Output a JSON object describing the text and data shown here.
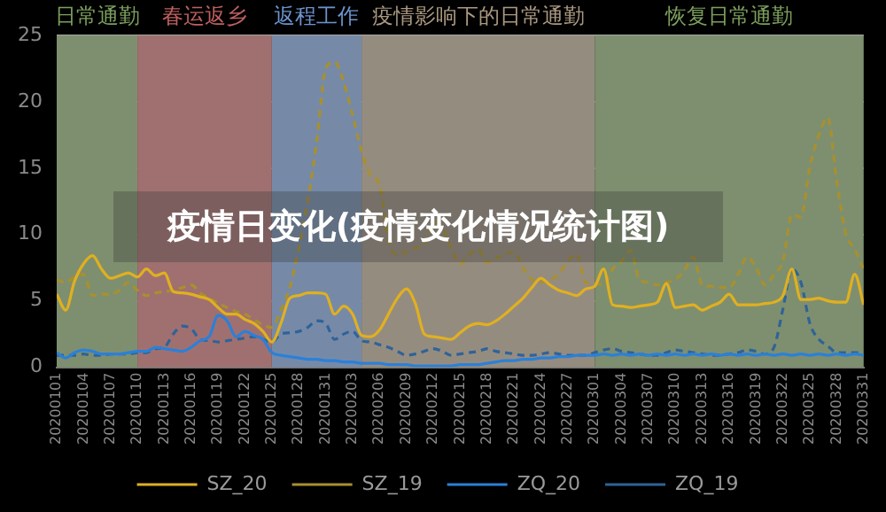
{
  "chart_data": {
    "type": "line",
    "title": "疫情日变化(疫情变化情况统计图)",
    "x": [
      "2020-01-01",
      "2020-01-02",
      "2020-01-03",
      "2020-01-04",
      "2020-01-05",
      "2020-01-06",
      "2020-01-07",
      "2020-01-08",
      "2020-01-09",
      "2020-01-10",
      "2020-01-11",
      "2020-01-12",
      "2020-01-13",
      "2020-01-14",
      "2020-01-15",
      "2020-01-16",
      "2020-01-17",
      "2020-01-18",
      "2020-01-19",
      "2020-01-20",
      "2020-01-21",
      "2020-01-22",
      "2020-01-23",
      "2020-01-24",
      "2020-01-25",
      "2020-01-26",
      "2020-01-27",
      "2020-01-28",
      "2020-01-29",
      "2020-01-30",
      "2020-01-31",
      "2020-02-01",
      "2020-02-02",
      "2020-02-03",
      "2020-02-04",
      "2020-02-05",
      "2020-02-06",
      "2020-02-07",
      "2020-02-08",
      "2020-02-09",
      "2020-02-10",
      "2020-02-11",
      "2020-02-12",
      "2020-02-13",
      "2020-02-14",
      "2020-02-15",
      "2020-02-16",
      "2020-02-17",
      "2020-02-18",
      "2020-02-19",
      "2020-02-20",
      "2020-02-21",
      "2020-02-22",
      "2020-02-23",
      "2020-02-24",
      "2020-02-25",
      "2020-02-26",
      "2020-02-27",
      "2020-02-28",
      "2020-02-29",
      "2020-03-01",
      "2020-03-02",
      "2020-03-03",
      "2020-03-04",
      "2020-03-05",
      "2020-03-06",
      "2020-03-07",
      "2020-03-08",
      "2020-03-09",
      "2020-03-10",
      "2020-03-11",
      "2020-03-12",
      "2020-03-13",
      "2020-03-14",
      "2020-03-15",
      "2020-03-16",
      "2020-03-17",
      "2020-03-18",
      "2020-03-19",
      "2020-03-20",
      "2020-03-21",
      "2020-03-22",
      "2020-03-23",
      "2020-03-24",
      "2020-03-25",
      "2020-03-26",
      "2020-03-27",
      "2020-03-28",
      "2020-03-29",
      "2020-03-30",
      "2020-03-31"
    ],
    "series": [
      {
        "name": "SZ_20",
        "color": "#e0b020",
        "line_style": "solid",
        "values": [
          5.5,
          4.3,
          6.5,
          7.8,
          8.4,
          7.4,
          6.7,
          6.9,
          7.1,
          6.8,
          7.4,
          6.9,
          7.1,
          5.7,
          5.6,
          5.5,
          5.3,
          5.1,
          4.5,
          4.0,
          4.0,
          3.6,
          3.3,
          2.7,
          1.9,
          3.3,
          5.2,
          5.4,
          5.6,
          5.6,
          5.5,
          4.0,
          4.6,
          4.0,
          2.4,
          2.3,
          2.8,
          4.0,
          5.2,
          5.9,
          4.8,
          2.5,
          2.3,
          2.2,
          2.1,
          2.6,
          3.1,
          3.3,
          3.2,
          3.5,
          4.0,
          4.6,
          5.2,
          6.0,
          6.7,
          6.2,
          5.8,
          5.6,
          5.4,
          5.9,
          6.1,
          7.4,
          4.7,
          4.6,
          4.5,
          4.6,
          4.7,
          4.9,
          6.3,
          4.5,
          4.6,
          4.7,
          4.3,
          4.6,
          4.9,
          5.5,
          4.7,
          4.7,
          4.7,
          4.8,
          4.9,
          5.4,
          7.4,
          5.1,
          5.1,
          5.2,
          5.0,
          4.9,
          4.9,
          7.0,
          4.7
        ]
      },
      {
        "name": "SZ_19",
        "color": "#a8902e",
        "line_style": "dashed",
        "values": [
          6.6,
          6.4,
          6.8,
          7.0,
          5.4,
          5.5,
          5.5,
          5.8,
          6.4,
          5.8,
          5.4,
          5.6,
          5.7,
          5.8,
          6.0,
          6.2,
          5.6,
          5.2,
          4.8,
          4.5,
          4.2,
          4.0,
          3.6,
          3.2,
          3.0,
          4.3,
          6.0,
          9.0,
          12.5,
          17.0,
          22.5,
          23.0,
          21.5,
          19.0,
          16.3,
          14.5,
          13.8,
          9.5,
          8.5,
          8.7,
          9.0,
          9.3,
          10.9,
          10.5,
          9.0,
          7.8,
          8.5,
          8.9,
          7.9,
          8.2,
          8.5,
          8.7,
          7.5,
          6.6,
          6.4,
          6.6,
          7.0,
          8.0,
          8.5,
          6.4,
          6.3,
          6.2,
          7.4,
          8.0,
          8.8,
          6.6,
          6.4,
          6.2,
          6.4,
          6.6,
          7.3,
          8.3,
          6.2,
          6.1,
          6.0,
          6.0,
          7.0,
          8.3,
          7.5,
          6.2,
          7.0,
          8.0,
          11.5,
          11.3,
          15.1,
          17.5,
          18.8,
          14.0,
          10.1,
          8.9,
          7.4
        ]
      },
      {
        "name": "ZQ_20",
        "color": "#2b80d8",
        "line_style": "solid",
        "values": [
          1.1,
          0.7,
          1.1,
          1.3,
          1.2,
          1.0,
          1.0,
          1.0,
          1.1,
          1.2,
          1.2,
          1.5,
          1.4,
          1.3,
          1.2,
          1.5,
          2.0,
          2.3,
          3.9,
          3.5,
          2.3,
          2.7,
          2.4,
          2.1,
          1.1,
          0.9,
          0.8,
          0.7,
          0.6,
          0.6,
          0.5,
          0.5,
          0.4,
          0.4,
          0.3,
          0.3,
          0.3,
          0.2,
          0.2,
          0.2,
          0.1,
          0.1,
          0.1,
          0.1,
          0.1,
          0.2,
          0.2,
          0.2,
          0.3,
          0.4,
          0.5,
          0.5,
          0.6,
          0.6,
          0.7,
          0.7,
          0.8,
          0.8,
          0.9,
          0.9,
          0.9,
          1.0,
          0.9,
          1.0,
          0.9,
          1.0,
          0.9,
          1.0,
          0.9,
          1.0,
          0.9,
          1.0,
          0.9,
          1.0,
          0.9,
          1.0,
          0.9,
          1.0,
          0.9,
          1.0,
          0.9,
          1.0,
          0.9,
          1.0,
          0.9,
          1.0,
          0.9,
          1.0,
          0.9,
          1.0,
          0.9
        ]
      },
      {
        "name": "ZQ_19",
        "color": "#2f6398",
        "line_style": "dashed",
        "values": [
          0.9,
          0.9,
          0.9,
          1.0,
          0.9,
          0.9,
          1.0,
          1.0,
          1.0,
          1.1,
          1.1,
          1.4,
          1.5,
          2.5,
          3.1,
          2.9,
          2.1,
          2.0,
          1.9,
          2.0,
          2.1,
          2.2,
          2.3,
          2.1,
          1.9,
          2.5,
          2.6,
          2.7,
          3.0,
          3.5,
          3.3,
          2.1,
          2.5,
          2.7,
          2.0,
          1.9,
          1.7,
          1.5,
          1.2,
          0.9,
          1.0,
          1.2,
          1.4,
          1.2,
          0.9,
          1.0,
          1.1,
          1.2,
          1.4,
          1.2,
          1.1,
          1.0,
          0.9,
          0.9,
          1.0,
          1.1,
          1.0,
          0.9,
          0.9,
          0.9,
          1.1,
          1.3,
          1.4,
          1.2,
          1.1,
          1.0,
          0.9,
          0.9,
          1.1,
          1.3,
          1.2,
          1.1,
          1.0,
          0.9,
          0.9,
          1.0,
          1.1,
          1.3,
          1.2,
          1.0,
          1.5,
          4.4,
          7.4,
          6.4,
          3.3,
          2.1,
          1.6,
          1.1,
          1.1,
          1.1,
          1.1
        ]
      }
    ],
    "xlim": [
      "2020-01-01",
      "2020-03-31"
    ],
    "xticks": [
      {
        "value": "2020-01-01",
        "label": "20200101"
      },
      {
        "value": "2020-01-04",
        "label": "20200104"
      },
      {
        "value": "2020-01-07",
        "label": "20200107"
      },
      {
        "value": "2020-01-10",
        "label": "20200110"
      },
      {
        "value": "2020-01-13",
        "label": "20200113"
      },
      {
        "value": "2020-01-16",
        "label": "20200116"
      },
      {
        "value": "2020-01-19",
        "label": "20200119"
      },
      {
        "value": "2020-01-22",
        "label": "20200122"
      },
      {
        "value": "2020-01-25",
        "label": "20200125"
      },
      {
        "value": "2020-01-28",
        "label": "20200128"
      },
      {
        "value": "2020-01-31",
        "label": "20200131"
      },
      {
        "value": "2020-02-03",
        "label": "20200203"
      },
      {
        "value": "2020-02-06",
        "label": "20200206"
      },
      {
        "value": "2020-02-09",
        "label": "20200209"
      },
      {
        "value": "2020-02-12",
        "label": "20200212"
      },
      {
        "value": "2020-02-15",
        "label": "20200215"
      },
      {
        "value": "2020-02-18",
        "label": "20200218"
      },
      {
        "value": "2020-02-21",
        "label": "20200221"
      },
      {
        "value": "2020-02-24",
        "label": "20200224"
      },
      {
        "value": "2020-02-27",
        "label": "20200227"
      },
      {
        "value": "2020-03-01",
        "label": "20200301"
      },
      {
        "value": "2020-03-04",
        "label": "20200304"
      },
      {
        "value": "2020-03-07",
        "label": "20200307"
      },
      {
        "value": "2020-03-10",
        "label": "20200310"
      },
      {
        "value": "2020-03-13",
        "label": "20200313"
      },
      {
        "value": "2020-03-16",
        "label": "20200316"
      },
      {
        "value": "2020-03-19",
        "label": "20200319"
      },
      {
        "value": "2020-03-22",
        "label": "20200322"
      },
      {
        "value": "2020-03-25",
        "label": "20200325"
      },
      {
        "value": "2020-03-28",
        "label": "20200328"
      },
      {
        "value": "2020-03-31",
        "label": "20200331"
      }
    ],
    "ylim": [
      0,
      25
    ],
    "yticks": [
      0,
      5,
      10,
      15,
      20,
      25
    ],
    "bands": [
      {
        "axis": "x",
        "from": "2020-01-01",
        "to": "2020-01-10",
        "label": "日常通勤",
        "color": "#7e8f6f"
      },
      {
        "axis": "x",
        "from": "2020-01-10",
        "to": "2020-01-25",
        "label": "春运返乡",
        "color": "#a07070"
      },
      {
        "axis": "x",
        "from": "2020-01-25",
        "to": "2020-02-04",
        "label": "返程工作",
        "color": "#768aa8"
      },
      {
        "axis": "x",
        "from": "2020-02-04",
        "to": "2020-03-01",
        "label": "疫情影响下的日常通勤",
        "color": "#958c80"
      },
      {
        "axis": "x",
        "from": "2020-03-01",
        "to": "2020-03-31",
        "label": "恢复日常通勤",
        "color": "#7e8f6f"
      }
    ],
    "grid": "y",
    "legend": "bottom",
    "marker": "none"
  }
}
